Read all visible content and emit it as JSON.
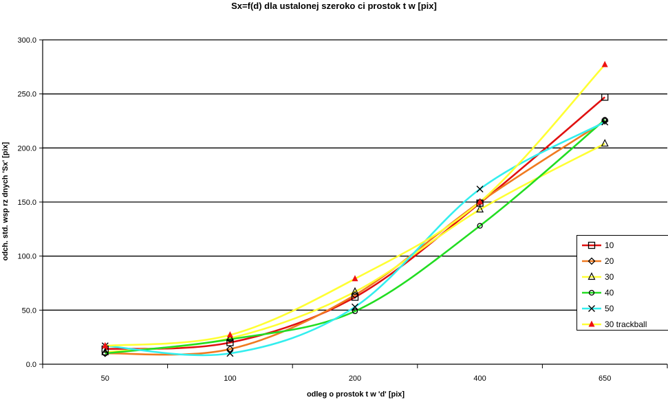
{
  "chart_data": {
    "type": "line",
    "title": "Sx=f(d) dla ustalonej szeroko  ci prostok  t  w [pix]",
    "xlabel": "odleg o     prostok  t  w 'd' [pix]",
    "ylabel": "odch. std. wsp    rz   dnych 'Sx' [pix]",
    "categories": [
      "50",
      "100",
      "200",
      "400",
      "650"
    ],
    "ylim": [
      0,
      300
    ],
    "yticks": [
      "0.0",
      "50.0",
      "100.0",
      "150.0",
      "200.0",
      "250.0",
      "300.0"
    ],
    "grid": true,
    "legend_position": "right",
    "series": [
      {
        "name": "10",
        "color": "#e01010",
        "marker": "square",
        "values": [
          14,
          20,
          62,
          149,
          247
        ]
      },
      {
        "name": "20",
        "color": "#f07a20",
        "marker": "diamond",
        "values": [
          10,
          14,
          64,
          150,
          225
        ]
      },
      {
        "name": "30",
        "color": "#ffff33",
        "marker": "triangle-open",
        "values": [
          11,
          24,
          67,
          143,
          204
        ]
      },
      {
        "name": "40",
        "color": "#22dd22",
        "marker": "circle",
        "values": [
          10,
          23,
          49,
          128,
          226
        ]
      },
      {
        "name": "50",
        "color": "#33eeee",
        "marker": "x",
        "values": [
          17,
          10,
          53,
          162,
          224
        ]
      },
      {
        "name": "30 trackball",
        "color": "#ffff33",
        "marker": "triangle-filled",
        "values": [
          17,
          27,
          79,
          150,
          277
        ]
      }
    ]
  }
}
